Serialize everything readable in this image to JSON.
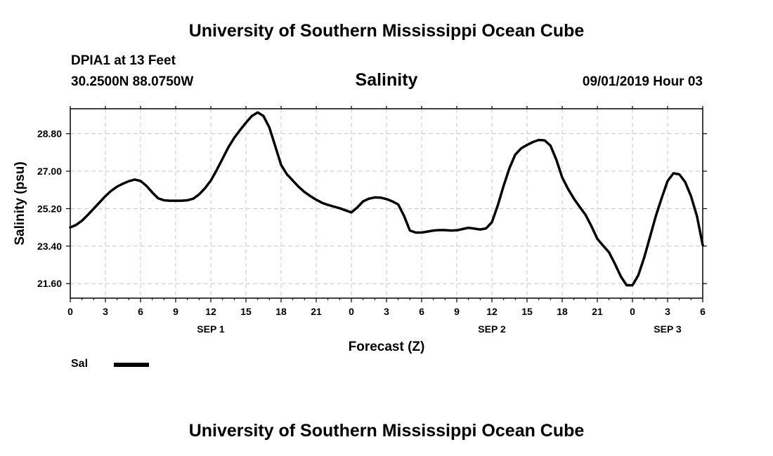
{
  "header": {
    "title": "University of Southern Mississippi Ocean Cube",
    "station": "DPIA1 at 13 Feet",
    "coords": "30.2500N 88.0750W",
    "subtitle": "Salinity",
    "timestamp": "09/01/2019 Hour 03"
  },
  "footer": {
    "title": "University of Southern Mississippi Ocean Cube"
  },
  "legend": {
    "label": "Sal",
    "color": "#000000"
  },
  "chart_data": {
    "type": "line",
    "xlabel": "Forecast (Z)",
    "ylabel": "Salinity (psu)",
    "x_unit": "hours from 09/01/2019 00Z",
    "xlim": [
      0,
      54
    ],
    "ylim": [
      20.9,
      30.0
    ],
    "y_ticks": [
      "21.60",
      "23.40",
      "25.20",
      "27.00",
      "28.80"
    ],
    "y_tick_values": [
      21.6,
      23.4,
      25.2,
      27.0,
      28.8
    ],
    "x_tick_labels": [
      "0",
      "3",
      "6",
      "9",
      "12",
      "15",
      "18",
      "21",
      "0",
      "3",
      "6",
      "9",
      "12",
      "15",
      "18",
      "21",
      "0",
      "3",
      "6"
    ],
    "day_labels": [
      {
        "label": "SEP 1",
        "at_hour": 12
      },
      {
        "label": "SEP 2",
        "at_hour": 36
      },
      {
        "label": "SEP 3",
        "at_hour": 51
      }
    ],
    "grid": true,
    "legend_position": "bottom-left",
    "series": [
      {
        "name": "Sal",
        "color": "#000000",
        "x": [
          0,
          0.5,
          1,
          1.5,
          2,
          2.5,
          3,
          3.5,
          4,
          4.5,
          5,
          5.5,
          6,
          6.5,
          7,
          7.5,
          8,
          8.5,
          9,
          9.5,
          10,
          10.5,
          11,
          11.5,
          12,
          12.5,
          13,
          13.5,
          14,
          14.5,
          15,
          15.5,
          16,
          16.5,
          17,
          17.5,
          18,
          18.5,
          19,
          19.5,
          20,
          20.5,
          21,
          21.5,
          22,
          22.5,
          23,
          23.5,
          24,
          24.5,
          25,
          25.5,
          26,
          26.5,
          27,
          27.5,
          28,
          28.5,
          29,
          29.5,
          30,
          30.5,
          31,
          31.5,
          32,
          32.5,
          33,
          33.5,
          34,
          34.5,
          35,
          35.5,
          36,
          36.5,
          37,
          37.5,
          38,
          38.5,
          39,
          39.5,
          40,
          40.5,
          41,
          41.5,
          42,
          42.5,
          43,
          43.5,
          44,
          44.5,
          45,
          45.5,
          46,
          46.5,
          47,
          47.5,
          48,
          48.5,
          49,
          49.5,
          50,
          50.5,
          51,
          51.5,
          52,
          52.5,
          53,
          53.5,
          54
        ],
        "values": [
          24.3,
          24.42,
          24.62,
          24.9,
          25.2,
          25.5,
          25.8,
          26.06,
          26.26,
          26.4,
          26.52,
          26.6,
          26.53,
          26.3,
          25.98,
          25.7,
          25.6,
          25.58,
          25.58,
          25.58,
          25.6,
          25.68,
          25.88,
          26.18,
          26.55,
          27.05,
          27.6,
          28.15,
          28.6,
          28.98,
          29.33,
          29.65,
          29.82,
          29.65,
          29.1,
          28.2,
          27.3,
          26.85,
          26.55,
          26.25,
          26.0,
          25.8,
          25.63,
          25.48,
          25.38,
          25.3,
          25.22,
          25.12,
          25.02,
          25.25,
          25.55,
          25.68,
          25.74,
          25.73,
          25.66,
          25.55,
          25.4,
          24.85,
          24.15,
          24.05,
          24.05,
          24.1,
          24.15,
          24.17,
          24.17,
          24.15,
          24.16,
          24.22,
          24.28,
          24.24,
          24.2,
          24.25,
          24.55,
          25.35,
          26.3,
          27.15,
          27.8,
          28.1,
          28.26,
          28.4,
          28.5,
          28.48,
          28.23,
          27.55,
          26.7,
          26.15,
          25.68,
          25.28,
          24.9,
          24.35,
          23.75,
          23.42,
          23.1,
          22.55,
          21.95,
          21.52,
          21.52,
          22.0,
          22.85,
          23.85,
          24.85,
          25.72,
          26.53,
          26.9,
          26.85,
          26.48,
          25.8,
          24.85,
          23.45
        ]
      }
    ]
  }
}
